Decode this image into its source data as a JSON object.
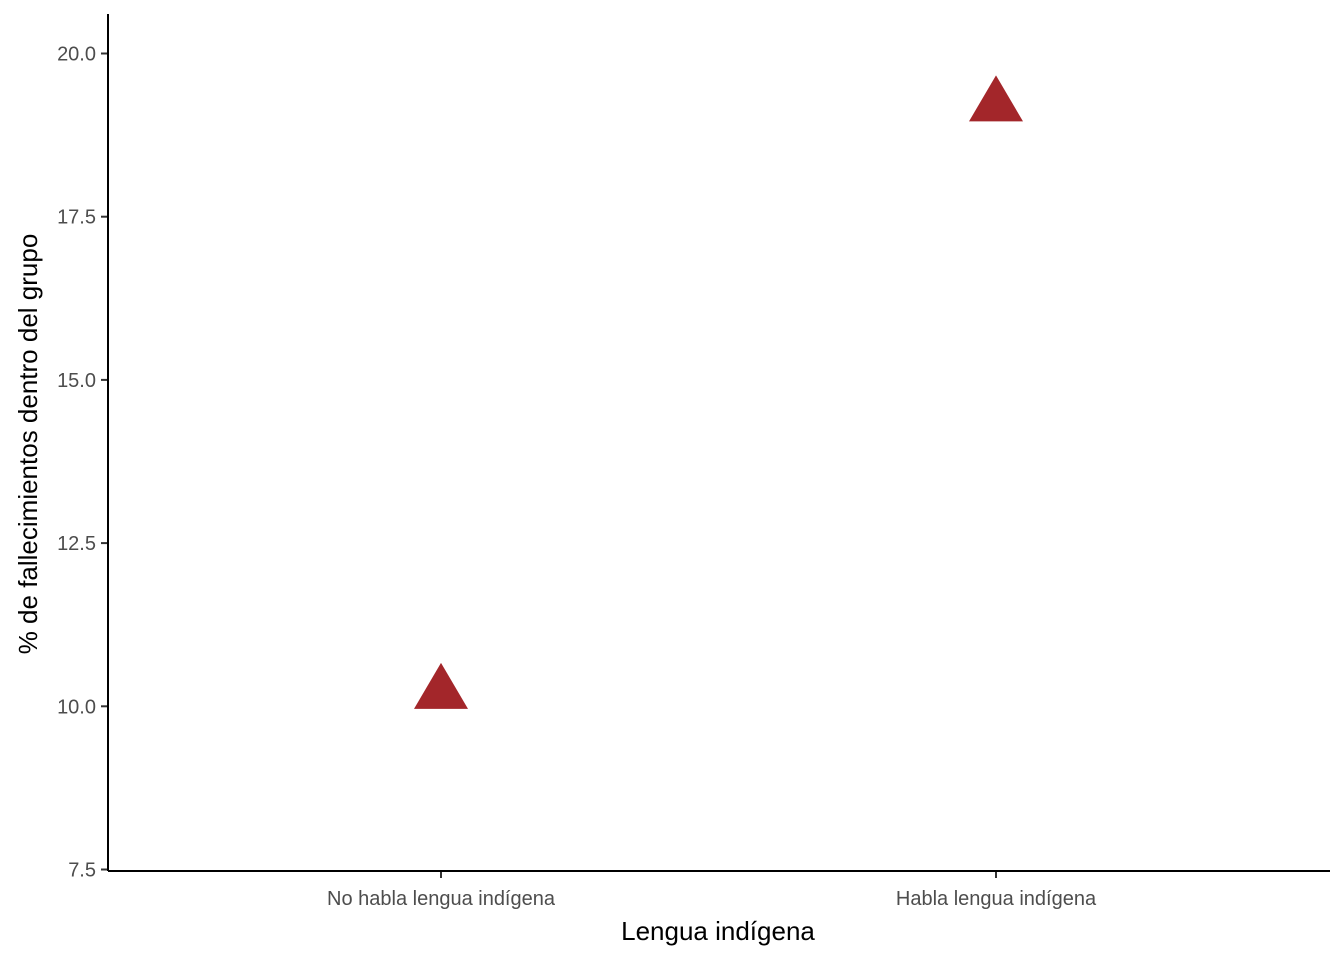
{
  "chart_data": {
    "type": "scatter",
    "categories": [
      "No habla lengua indígena",
      "Habla lengua indígena"
    ],
    "values": [
      10.2,
      19.2
    ],
    "xlabel": "Lengua indígena",
    "ylabel": "% de fallecimientos dentro del grupo",
    "ylim": [
      7.5,
      20.6
    ],
    "yticks": [
      7.5,
      10.0,
      12.5,
      15.0,
      17.5,
      20.0
    ],
    "ytick_labels": [
      "7.5",
      "10.0",
      "12.5",
      "15.0",
      "17.5",
      "20.0"
    ],
    "marker": "triangle",
    "marker_color": "#A3262A",
    "grid": false,
    "legend": "none"
  }
}
